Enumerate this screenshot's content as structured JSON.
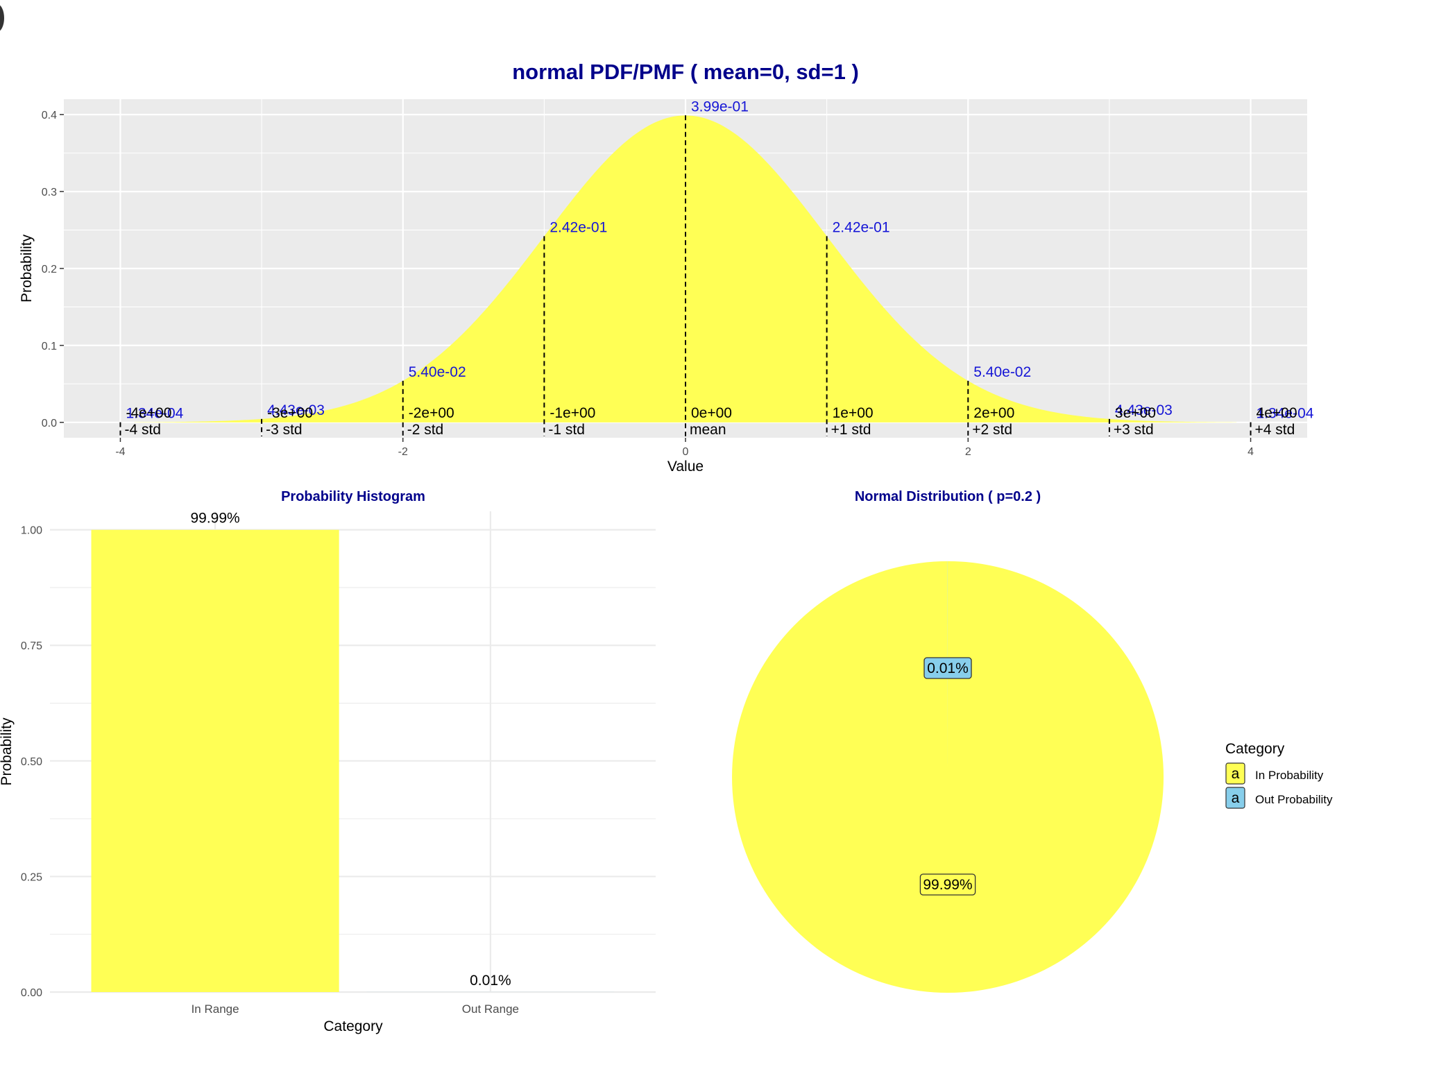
{
  "colors": {
    "title": "#00008B",
    "in_fill": "#FFFF55",
    "out_fill": "#87CEEB",
    "panel_bg": "#EBEBEB",
    "grid": "#FFFFFF",
    "light_grid": "#EBEBEB",
    "value_label": "#1515D6",
    "text": "#000000",
    "axis_text": "#4D4D4D"
  },
  "chart_data": [
    {
      "type": "area",
      "title": "normal PDF/PMF ( mean=0, sd=1 )",
      "xlabel": "Value",
      "ylabel": "Probability",
      "xlim": [
        -4.4,
        4.4
      ],
      "ylim": [
        -0.02,
        0.42
      ],
      "x_ticks": [
        -4,
        -2,
        0,
        2,
        4
      ],
      "x_tick_labels": [
        "-4",
        "-2",
        "0",
        "2",
        "4"
      ],
      "y_ticks": [
        0.0,
        0.1,
        0.2,
        0.3,
        0.4
      ],
      "y_tick_labels": [
        "0.0",
        "0.1",
        "0.2",
        "0.3",
        "0.4"
      ],
      "fill": "#FFFF55",
      "mean": 0,
      "sd": 1,
      "curve_range": [
        -3.9,
        3.9
      ],
      "grid": true,
      "markers": [
        {
          "x": -4,
          "y": 0.000134,
          "value_label": "1.34e-04",
          "x_label": "-4e+00",
          "std_label": "-4 std"
        },
        {
          "x": -3,
          "y": 0.00443,
          "value_label": "4.43e-03",
          "x_label": "-3e+00",
          "std_label": "-3 std"
        },
        {
          "x": -2,
          "y": 0.054,
          "value_label": "5.40e-02",
          "x_label": "-2e+00",
          "std_label": "-2 std"
        },
        {
          "x": -1,
          "y": 0.242,
          "value_label": "2.42e-01",
          "x_label": "-1e+00",
          "std_label": "-1 std"
        },
        {
          "x": 0,
          "y": 0.399,
          "value_label": "3.99e-01",
          "x_label": "0e+00",
          "std_label": "mean"
        },
        {
          "x": 1,
          "y": 0.242,
          "value_label": "2.42e-01",
          "x_label": "1e+00",
          "std_label": "+1 std"
        },
        {
          "x": 2,
          "y": 0.054,
          "value_label": "5.40e-02",
          "x_label": "2e+00",
          "std_label": "+2 std"
        },
        {
          "x": 3,
          "y": 0.00443,
          "value_label": "4.43e-03",
          "x_label": "3e+00",
          "std_label": "+3 std"
        },
        {
          "x": 4,
          "y": 0.000134,
          "value_label": "1.34e-04",
          "x_label": "4e+00",
          "std_label": "+4 std"
        }
      ]
    },
    {
      "type": "bar",
      "title": "Probability Histogram",
      "xlabel": "Category",
      "ylabel": "Probability",
      "categories": [
        "In Range",
        "Out Range"
      ],
      "values": [
        0.9999,
        0.0001
      ],
      "value_labels": [
        "99.99%",
        "0.01%"
      ],
      "ylim": [
        0,
        1.04
      ],
      "y_ticks": [
        0.0,
        0.25,
        0.5,
        0.75,
        1.0
      ],
      "y_tick_labels": [
        "0.00",
        "0.25",
        "0.50",
        "0.75",
        "1.00"
      ],
      "colors": [
        "#FFFF55",
        "#87CEEB"
      ],
      "grid": true
    },
    {
      "type": "pie",
      "title": "Normal Distribution ( p=0.2 )",
      "labels": [
        "In Probability",
        "Out Probability"
      ],
      "values": [
        0.9999,
        0.0001
      ],
      "value_labels": [
        "99.99%",
        "0.01%"
      ],
      "colors": [
        "#FFFF55",
        "#87CEEB"
      ],
      "legend_title": "Category",
      "legend_key_glyph": "a",
      "legend_position": "right"
    }
  ]
}
